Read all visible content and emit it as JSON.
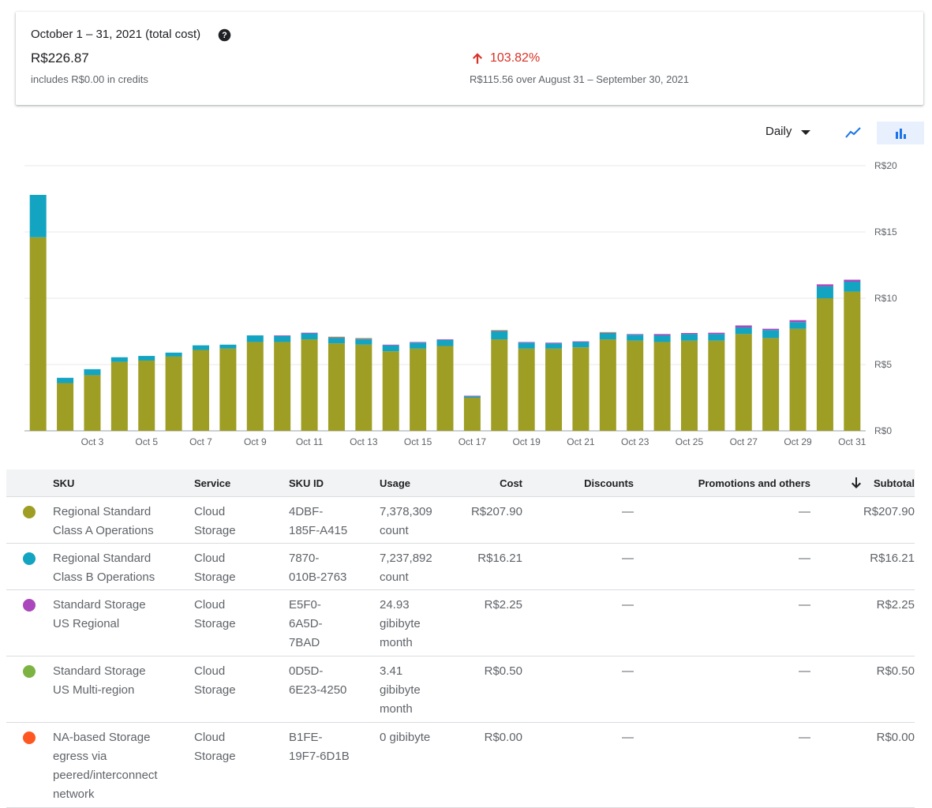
{
  "summary": {
    "period": "October 1 – 31, 2021 (total cost)",
    "total": "R$226.87",
    "credits": "includes R$0.00 in credits",
    "change_pct": "103.82%",
    "compare": "R$115.56 over August 31 – September 30, 2021"
  },
  "controls": {
    "granularity": "Daily",
    "icons": [
      "help-icon",
      "arrow-up-icon",
      "chevron-down-icon",
      "line-chart-icon",
      "bar-chart-icon"
    ]
  },
  "chart_data": {
    "type": "bar",
    "stacked": true,
    "categories": [
      "Oct 1",
      "Oct 2",
      "Oct 3",
      "Oct 4",
      "Oct 5",
      "Oct 6",
      "Oct 7",
      "Oct 8",
      "Oct 9",
      "Oct 10",
      "Oct 11",
      "Oct 12",
      "Oct 13",
      "Oct 14",
      "Oct 15",
      "Oct 16",
      "Oct 17",
      "Oct 18",
      "Oct 19",
      "Oct 20",
      "Oct 21",
      "Oct 22",
      "Oct 23",
      "Oct 24",
      "Oct 25",
      "Oct 26",
      "Oct 27",
      "Oct 28",
      "Oct 29",
      "Oct 30",
      "Oct 31"
    ],
    "tick_labels": [
      "Oct 3",
      "Oct 5",
      "Oct 7",
      "Oct 9",
      "Oct 11",
      "Oct 13",
      "Oct 15",
      "Oct 17",
      "Oct 19",
      "Oct 21",
      "Oct 23",
      "Oct 25",
      "Oct 27",
      "Oct 29",
      "Oct 31"
    ],
    "y_ticks": [
      "R$0",
      "R$5",
      "R$10",
      "R$15",
      "R$20"
    ],
    "ylim": [
      0,
      20
    ],
    "grid": true,
    "series": [
      {
        "name": "Regional Standard Class A Operations",
        "color": "#9e9d24",
        "values": [
          14.6,
          3.6,
          4.2,
          5.2,
          5.3,
          5.6,
          6.1,
          6.2,
          6.7,
          6.7,
          6.9,
          6.6,
          6.5,
          6.0,
          6.2,
          6.4,
          2.5,
          6.9,
          6.2,
          6.2,
          6.3,
          6.9,
          6.8,
          6.7,
          6.8,
          6.8,
          7.3,
          7.0,
          7.7,
          10.0,
          10.5
        ]
      },
      {
        "name": "Regional Standard Class B Operations",
        "color": "#12a4c1",
        "values": [
          3.2,
          0.4,
          0.45,
          0.35,
          0.35,
          0.3,
          0.35,
          0.3,
          0.5,
          0.45,
          0.45,
          0.4,
          0.4,
          0.45,
          0.45,
          0.45,
          0.1,
          0.6,
          0.45,
          0.4,
          0.4,
          0.45,
          0.45,
          0.5,
          0.5,
          0.5,
          0.5,
          0.6,
          0.5,
          0.9,
          0.75
        ]
      },
      {
        "name": "Standard Storage US Regional",
        "color": "#ab47bc",
        "values": [
          0,
          0,
          0,
          0,
          0,
          0,
          0,
          0,
          0,
          0.05,
          0.05,
          0.05,
          0.05,
          0.05,
          0.05,
          0.05,
          0.05,
          0.05,
          0.05,
          0.05,
          0.05,
          0.05,
          0.05,
          0.1,
          0.08,
          0.1,
          0.15,
          0.1,
          0.15,
          0.15,
          0.15
        ]
      },
      {
        "name": "Standard Storage US Multi-region",
        "color": "#7cb342",
        "values": [
          0,
          0,
          0,
          0,
          0,
          0,
          0,
          0,
          0,
          0,
          0,
          0.05,
          0.05,
          0,
          0,
          0,
          0,
          0.05,
          0,
          0,
          0,
          0.05,
          0,
          0,
          0,
          0,
          0,
          0,
          0,
          0,
          0
        ]
      }
    ]
  },
  "table": {
    "headers": {
      "sku": "SKU",
      "service": "Service",
      "sku_id": "SKU ID",
      "usage": "Usage",
      "cost": "Cost",
      "discounts": "Discounts",
      "promotions": "Promotions and others",
      "subtotal": "Subtotal"
    },
    "rows": [
      {
        "color": "#9e9d24",
        "sku": [
          "Regional Standard",
          "Class A Operations"
        ],
        "service": [
          "Cloud",
          "Storage"
        ],
        "sku_id": [
          "4DBF-",
          "185F-A415"
        ],
        "usage": [
          "7,378,309",
          "count"
        ],
        "cost": "R$207.90",
        "discounts": "—",
        "promotions": "—",
        "subtotal": "R$207.90"
      },
      {
        "color": "#12a4c1",
        "sku": [
          "Regional Standard",
          "Class B Operations"
        ],
        "service": [
          "Cloud",
          "Storage"
        ],
        "sku_id": [
          "7870-",
          "010B-2763"
        ],
        "usage": [
          "7,237,892",
          "count"
        ],
        "cost": "R$16.21",
        "discounts": "—",
        "promotions": "—",
        "subtotal": "R$16.21"
      },
      {
        "color": "#ab47bc",
        "sku": [
          "Standard Storage",
          "US Regional"
        ],
        "service": [
          "Cloud",
          "Storage"
        ],
        "sku_id": [
          "E5F0-",
          "6A5D-",
          "7BAD"
        ],
        "usage": [
          "24.93",
          "gibibyte",
          "month"
        ],
        "cost": "R$2.25",
        "discounts": "—",
        "promotions": "—",
        "subtotal": "R$2.25"
      },
      {
        "color": "#7cb342",
        "sku": [
          "Standard Storage",
          "US Multi-region"
        ],
        "service": [
          "Cloud",
          "Storage"
        ],
        "sku_id": [
          "0D5D-",
          "6E23-4250"
        ],
        "usage": [
          "3.41",
          "gibibyte",
          "month"
        ],
        "cost": "R$0.50",
        "discounts": "—",
        "promotions": "—",
        "subtotal": "R$0.50"
      },
      {
        "color": "#ff5722",
        "sku": [
          "NA-based Storage",
          "egress via",
          "peered/interconnect",
          "network"
        ],
        "service": [
          "Cloud",
          "Storage"
        ],
        "sku_id": [
          "B1FE-",
          "19F7-6D1B"
        ],
        "usage": [
          "0 gibibyte"
        ],
        "cost": "R$0.00",
        "discounts": "—",
        "promotions": "—",
        "subtotal": "R$0.00"
      }
    ]
  }
}
